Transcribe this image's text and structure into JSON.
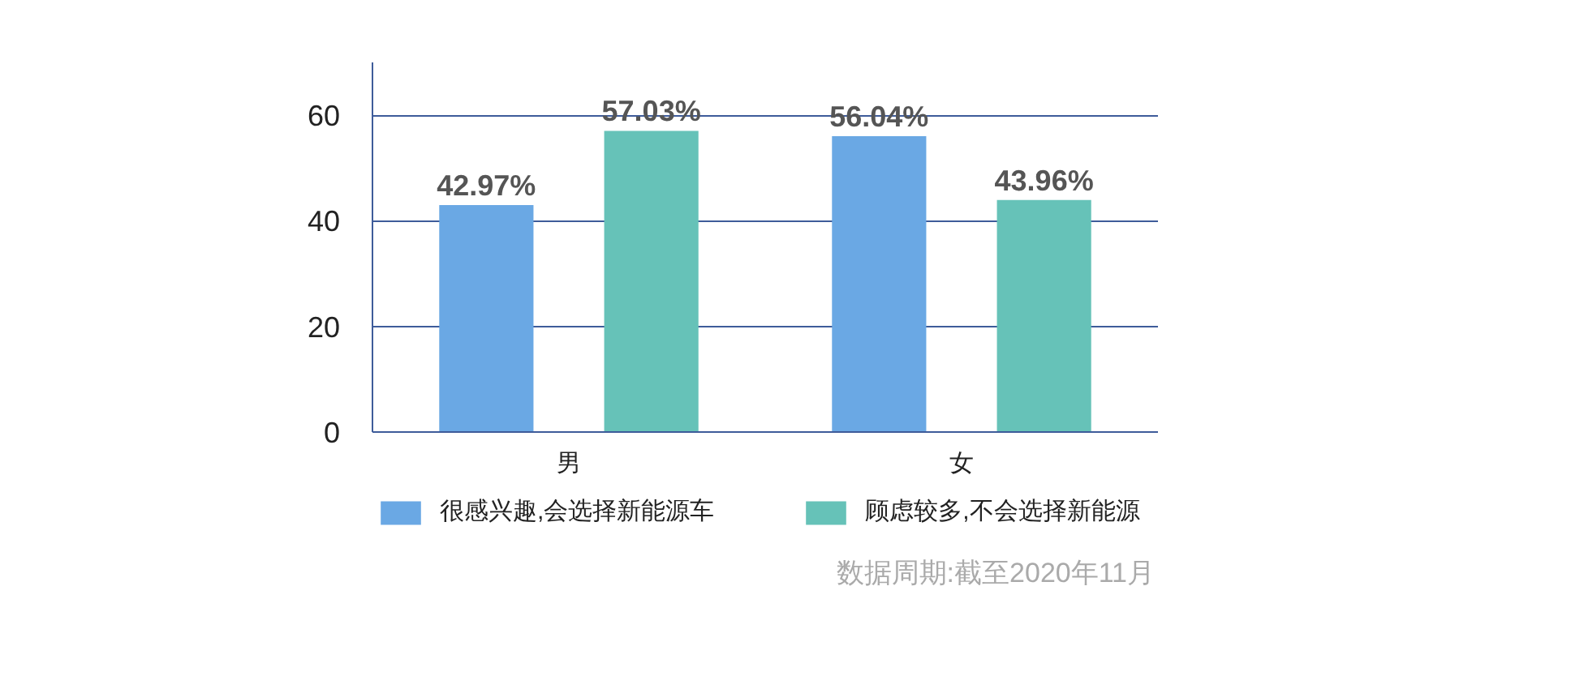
{
  "chart_data": {
    "type": "bar",
    "categories": [
      "男",
      "女"
    ],
    "series": [
      {
        "name": "很感兴趣,会选择新能源车",
        "color": "#6aa8e4",
        "values": [
          42.97,
          56.04
        ],
        "value_labels": [
          "42.97%",
          "56.04%"
        ]
      },
      {
        "name": "顾虑较多,不会选择新能源",
        "color": "#66c2b8",
        "values": [
          57.03,
          43.96
        ],
        "value_labels": [
          "57.03%",
          "43.96%"
        ]
      }
    ],
    "ylim": [
      0,
      70
    ],
    "yticks": [
      0,
      20,
      40,
      60
    ],
    "grid": "y",
    "legend": "bottom",
    "annotations": [
      "数据周期:截至2020年11月"
    ]
  }
}
